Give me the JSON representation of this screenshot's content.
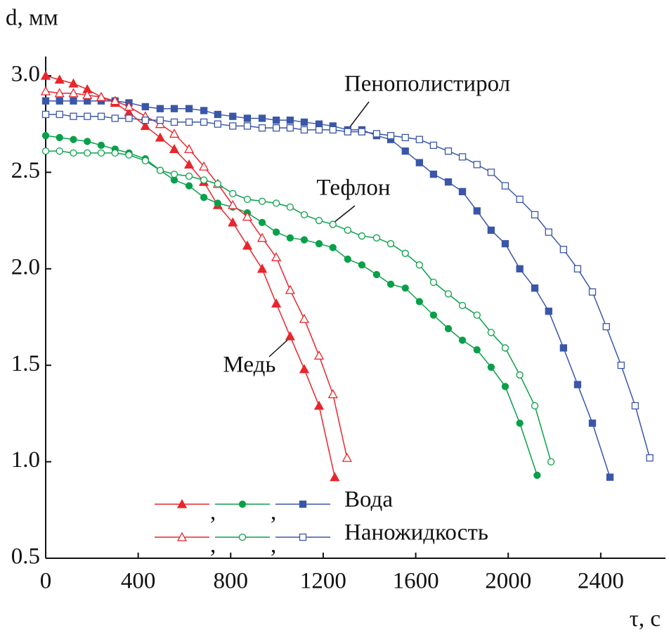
{
  "chart_data": {
    "type": "line",
    "x_label": "τ, с",
    "y_label": "d, мм",
    "xlim": [
      0,
      2680
    ],
    "ylim": [
      0.5,
      3.1
    ],
    "xticks": [
      0,
      400,
      800,
      1200,
      1600,
      2000,
      2400
    ],
    "yticks": [
      0.5,
      {
        "value": 1,
        "label": "1.0"
      },
      1.5,
      {
        "value": 2,
        "label": "2.0"
      },
      2.5,
      {
        "value": 3,
        "label": "3.0"
      }
    ],
    "legend_separator": ",",
    "annotations": [
      {
        "text": "Пенополистирол"
      },
      {
        "text": "Тефлон"
      },
      {
        "text": "Медь"
      }
    ],
    "series": [
      {
        "name": "Вода",
        "color": "#e8262d",
        "marker": "triangle",
        "filled": true,
        "x": [
          0,
          60,
          120,
          180,
          240,
          300,
          360,
          431,
          495,
          556,
          620,
          684,
          744,
          809,
          872,
          936,
          997,
          1057,
          1118,
          1182,
          1250
        ],
        "values": [
          3.0,
          2.98,
          2.96,
          2.93,
          2.89,
          2.86,
          2.81,
          2.74,
          2.68,
          2.62,
          2.54,
          2.45,
          2.33,
          2.24,
          2.12,
          2.0,
          1.82,
          1.65,
          1.48,
          1.29,
          0.92
        ]
      },
      {
        "name": "Вода",
        "color": "#0aa04a",
        "marker": "circle",
        "filled": true,
        "x": [
          0,
          60,
          120,
          180,
          240,
          300,
          360,
          431,
          495,
          556,
          620,
          684,
          744,
          809,
          872,
          936,
          997,
          1057,
          1118,
          1182,
          1242,
          1306,
          1367,
          1431,
          1492,
          1555,
          1616,
          1677,
          1741,
          1802,
          1865,
          1926,
          1987,
          2050,
          2125
        ],
        "values": [
          2.69,
          2.68,
          2.67,
          2.66,
          2.64,
          2.62,
          2.6,
          2.57,
          2.51,
          2.46,
          2.43,
          2.37,
          2.34,
          2.32,
          2.29,
          2.24,
          2.19,
          2.16,
          2.15,
          2.13,
          2.11,
          2.05,
          2.02,
          1.97,
          1.92,
          1.9,
          1.83,
          1.76,
          1.69,
          1.63,
          1.58,
          1.49,
          1.39,
          1.2,
          0.93
        ]
      },
      {
        "name": "Вода",
        "color": "#3a56a8",
        "marker": "square",
        "filled": true,
        "x": [
          0,
          60,
          120,
          180,
          240,
          300,
          360,
          431,
          495,
          556,
          620,
          684,
          744,
          809,
          872,
          936,
          997,
          1057,
          1118,
          1182,
          1242,
          1306,
          1367,
          1431,
          1492,
          1555,
          1616,
          1677,
          1741,
          1802,
          1865,
          1926,
          1987,
          2050,
          2115,
          2175,
          2239,
          2300,
          2364,
          2440
        ],
        "values": [
          2.87,
          2.87,
          2.87,
          2.87,
          2.87,
          2.87,
          2.86,
          2.84,
          2.83,
          2.83,
          2.83,
          2.82,
          2.8,
          2.79,
          2.78,
          2.78,
          2.77,
          2.77,
          2.76,
          2.75,
          2.74,
          2.72,
          2.72,
          2.69,
          2.67,
          2.61,
          2.55,
          2.49,
          2.45,
          2.4,
          2.3,
          2.2,
          2.13,
          2.0,
          1.9,
          1.78,
          1.59,
          1.4,
          1.2,
          0.92
        ]
      },
      {
        "name": "Наножидкость",
        "color": "#e8262d",
        "marker": "triangle",
        "filled": false,
        "x": [
          0,
          60,
          120,
          180,
          240,
          300,
          360,
          431,
          495,
          556,
          620,
          684,
          744,
          809,
          872,
          936,
          997,
          1057,
          1118,
          1182,
          1242,
          1303
        ],
        "values": [
          2.92,
          2.91,
          2.91,
          2.9,
          2.89,
          2.87,
          2.84,
          2.79,
          2.75,
          2.7,
          2.62,
          2.53,
          2.44,
          2.33,
          2.27,
          2.16,
          2.06,
          1.89,
          1.74,
          1.55,
          1.35,
          1.02
        ]
      },
      {
        "name": "Наножидкость",
        "color": "#0aa04a",
        "marker": "circle",
        "filled": false,
        "x": [
          0,
          60,
          120,
          180,
          240,
          300,
          360,
          431,
          495,
          556,
          620,
          684,
          744,
          809,
          872,
          936,
          997,
          1057,
          1118,
          1182,
          1242,
          1306,
          1367,
          1431,
          1492,
          1555,
          1616,
          1677,
          1741,
          1802,
          1865,
          1926,
          1987,
          2050,
          2115,
          2185
        ],
        "values": [
          2.61,
          2.61,
          2.6,
          2.6,
          2.6,
          2.6,
          2.59,
          2.56,
          2.51,
          2.49,
          2.48,
          2.46,
          2.44,
          2.39,
          2.36,
          2.35,
          2.34,
          2.32,
          2.28,
          2.25,
          2.23,
          2.2,
          2.17,
          2.16,
          2.13,
          2.08,
          2.02,
          1.93,
          1.87,
          1.81,
          1.76,
          1.67,
          1.59,
          1.45,
          1.29,
          1.0
        ]
      },
      {
        "name": "Наножидкость",
        "color": "#3a56a8",
        "marker": "square",
        "filled": false,
        "x": [
          0,
          60,
          120,
          180,
          240,
          300,
          360,
          431,
          495,
          556,
          620,
          684,
          744,
          809,
          872,
          936,
          997,
          1057,
          1118,
          1182,
          1242,
          1306,
          1367,
          1431,
          1492,
          1555,
          1616,
          1677,
          1741,
          1802,
          1865,
          1926,
          1987,
          2050,
          2115,
          2175,
          2239,
          2300,
          2364,
          2424,
          2488,
          2549,
          2612
        ],
        "values": [
          2.8,
          2.8,
          2.79,
          2.79,
          2.79,
          2.78,
          2.78,
          2.77,
          2.77,
          2.76,
          2.76,
          2.76,
          2.75,
          2.74,
          2.74,
          2.73,
          2.73,
          2.73,
          2.72,
          2.72,
          2.72,
          2.71,
          2.71,
          2.7,
          2.69,
          2.68,
          2.67,
          2.64,
          2.61,
          2.58,
          2.54,
          2.5,
          2.43,
          2.36,
          2.28,
          2.19,
          2.1,
          2.0,
          1.88,
          1.7,
          1.5,
          1.29,
          1.02
        ]
      }
    ]
  }
}
